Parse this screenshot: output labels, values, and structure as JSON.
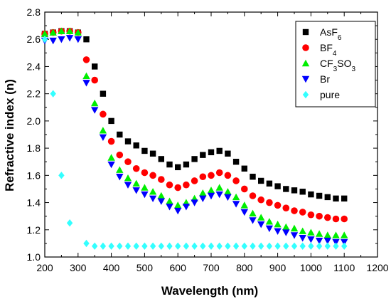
{
  "chart_data": {
    "type": "scatter",
    "xlabel": "Wavelength (nm)",
    "ylabel": "Refractive index (n)",
    "xlim": [
      200,
      1200
    ],
    "ylim": [
      1.0,
      2.8
    ],
    "xticks": [
      "200",
      "300",
      "400",
      "500",
      "600",
      "700",
      "800",
      "900",
      "1000",
      "1100",
      "1200"
    ],
    "yticks": [
      "1.0",
      "1.2",
      "1.4",
      "1.6",
      "1.8",
      "2.0",
      "2.2",
      "2.4",
      "2.6",
      "2.8"
    ],
    "grid": false,
    "legend_position": "top-right",
    "x": [
      200,
      225,
      250,
      275,
      300,
      325,
      350,
      375,
      400,
      425,
      450,
      475,
      500,
      525,
      550,
      575,
      600,
      625,
      650,
      675,
      700,
      725,
      750,
      775,
      800,
      825,
      850,
      875,
      900,
      925,
      950,
      975,
      1000,
      1025,
      1050,
      1075,
      1100
    ],
    "series": [
      {
        "name_main": "AsF",
        "name_sub": "6",
        "marker": "square",
        "color": "#000000",
        "values": [
          2.64,
          2.65,
          2.66,
          2.66,
          2.65,
          2.6,
          2.4,
          2.2,
          2.0,
          1.9,
          1.85,
          1.82,
          1.78,
          1.76,
          1.72,
          1.68,
          1.66,
          1.68,
          1.72,
          1.75,
          1.77,
          1.78,
          1.76,
          1.7,
          1.65,
          1.59,
          1.56,
          1.54,
          1.52,
          1.5,
          1.49,
          1.48,
          1.46,
          1.45,
          1.44,
          1.43,
          1.43
        ]
      },
      {
        "name_main": "BF",
        "name_sub": "4",
        "marker": "circle",
        "color": "#ff0000",
        "values": [
          2.64,
          2.65,
          2.66,
          2.66,
          2.65,
          2.45,
          2.3,
          2.05,
          1.85,
          1.75,
          1.7,
          1.65,
          1.62,
          1.6,
          1.57,
          1.53,
          1.51,
          1.53,
          1.56,
          1.59,
          1.6,
          1.62,
          1.6,
          1.56,
          1.5,
          1.45,
          1.42,
          1.4,
          1.38,
          1.36,
          1.34,
          1.33,
          1.31,
          1.3,
          1.29,
          1.28,
          1.28
        ]
      },
      {
        "name_main": "CF",
        "name_sub": "3",
        "name_tail": "SO",
        "name_sub2": "3",
        "marker": "triangle-up",
        "color": "#00ee00",
        "values": [
          2.64,
          2.65,
          2.66,
          2.66,
          2.65,
          2.33,
          2.13,
          1.93,
          1.73,
          1.64,
          1.58,
          1.54,
          1.51,
          1.48,
          1.45,
          1.41,
          1.38,
          1.4,
          1.43,
          1.47,
          1.49,
          1.51,
          1.48,
          1.44,
          1.38,
          1.32,
          1.29,
          1.26,
          1.24,
          1.22,
          1.21,
          1.19,
          1.18,
          1.17,
          1.16,
          1.16,
          1.16
        ]
      },
      {
        "name_main": "Br",
        "marker": "triangle-down",
        "color": "#0000ff",
        "values": [
          2.59,
          2.59,
          2.6,
          2.61,
          2.6,
          2.28,
          2.08,
          1.88,
          1.68,
          1.59,
          1.53,
          1.49,
          1.46,
          1.43,
          1.41,
          1.37,
          1.34,
          1.37,
          1.4,
          1.43,
          1.45,
          1.46,
          1.44,
          1.39,
          1.33,
          1.27,
          1.24,
          1.21,
          1.19,
          1.18,
          1.16,
          1.14,
          1.13,
          1.12,
          1.12,
          1.11,
          1.11
        ]
      },
      {
        "name_main": "pure",
        "marker": "diamond",
        "color": "#33ffff",
        "values": [
          2.6,
          2.2,
          1.6,
          1.25,
          null,
          1.1,
          1.08,
          1.08,
          1.08,
          1.08,
          1.08,
          1.08,
          1.08,
          1.08,
          1.08,
          1.08,
          1.08,
          1.08,
          1.08,
          1.08,
          1.08,
          1.08,
          1.08,
          1.08,
          1.08,
          1.08,
          1.08,
          1.08,
          1.08,
          1.08,
          1.08,
          1.08,
          1.08,
          1.08,
          1.08,
          1.08,
          1.08
        ]
      }
    ]
  }
}
